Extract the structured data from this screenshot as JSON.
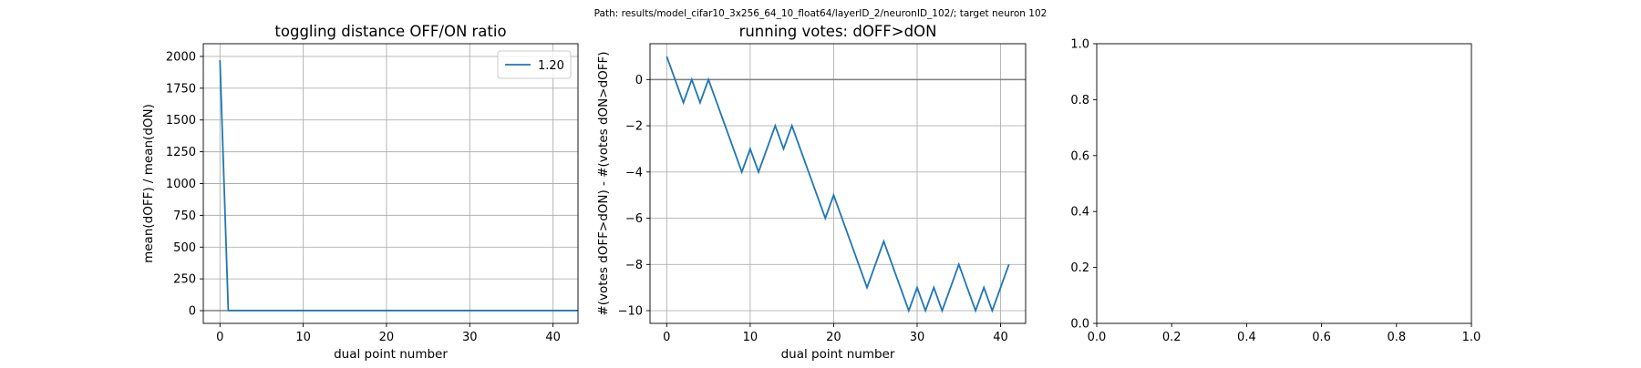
{
  "suptitle": "Path: results/model_cifar10_3x256_64_10_float64/layerID_2/neuronID_102/; target neuron 102",
  "colors": {
    "series": "#1f77b4",
    "hline": "#808080",
    "grid": "#b0b0b0"
  },
  "chart_data": [
    {
      "type": "line",
      "title": "toggling distance OFF/ON ratio",
      "xlabel": "dual point number",
      "ylabel": "mean(dOFF) / mean(dON)",
      "xlim": [
        -2,
        43
      ],
      "ylim": [
        -100,
        2100
      ],
      "xticks": [
        0,
        10,
        20,
        30,
        40
      ],
      "xtick_labels": [
        "0",
        "10",
        "20",
        "30",
        "40"
      ],
      "yticks": [
        0,
        250,
        500,
        750,
        1000,
        1250,
        1500,
        1750,
        2000
      ],
      "ytick_labels": [
        "0",
        "250",
        "500",
        "750",
        "1000",
        "1250",
        "1500",
        "1750",
        "2000"
      ],
      "grid": true,
      "hline": 0,
      "legend": {
        "position": "top-right",
        "entries": [
          "1.20"
        ]
      },
      "series": [
        {
          "name": "1.20",
          "x": [
            0,
            1,
            2,
            3,
            4,
            5,
            6,
            7,
            8,
            9,
            10,
            11,
            12,
            13,
            14,
            15,
            16,
            17,
            18,
            19,
            20,
            21,
            22,
            23,
            24,
            25,
            26,
            27,
            28,
            29,
            30,
            31,
            32,
            33,
            34,
            35,
            36,
            37,
            38,
            39,
            40,
            41,
            42,
            43
          ],
          "y": [
            1970,
            1.2,
            1.2,
            1.2,
            1.2,
            1.2,
            1.2,
            1.2,
            1.2,
            1.2,
            1.2,
            1.2,
            1.2,
            1.2,
            1.2,
            1.2,
            1.2,
            1.2,
            1.2,
            1.2,
            1.2,
            1.2,
            1.2,
            1.2,
            1.2,
            1.2,
            1.2,
            1.2,
            1.2,
            1.2,
            1.2,
            1.2,
            1.2,
            1.2,
            1.2,
            1.2,
            1.2,
            1.2,
            1.2,
            1.2,
            1.2,
            1.2,
            1.2,
            1.2
          ]
        }
      ]
    },
    {
      "type": "line",
      "title": "running votes: dOFF>dON",
      "xlabel": "dual point number",
      "ylabel": "#(votes dOFF>dON) - #(votes dON>dOFF)",
      "xlim": [
        -2,
        43
      ],
      "ylim": [
        -10.55,
        1.55
      ],
      "xticks": [
        0,
        10,
        20,
        30,
        40
      ],
      "xtick_labels": [
        "0",
        "10",
        "20",
        "30",
        "40"
      ],
      "yticks": [
        0,
        -2,
        -4,
        -6,
        -8,
        -10
      ],
      "ytick_labels": [
        "0",
        "−2",
        "−4",
        "−6",
        "−8",
        "−10"
      ],
      "grid": true,
      "hline": 0,
      "series": [
        {
          "x": [
            0,
            1,
            2,
            3,
            4,
            5,
            6,
            7,
            8,
            9,
            10,
            11,
            12,
            13,
            14,
            15,
            16,
            17,
            18,
            19,
            20,
            21,
            22,
            23,
            24,
            25,
            26,
            27,
            28,
            29,
            30,
            31,
            32,
            33,
            34,
            35,
            36,
            37,
            38,
            39,
            40,
            41
          ],
          "y": [
            1,
            0,
            -1,
            0,
            -1,
            0,
            -1,
            -2,
            -3,
            -4,
            -3,
            -4,
            -3,
            -2,
            -3,
            -2,
            -3,
            -4,
            -5,
            -6,
            -5,
            -6,
            -7,
            -8,
            -9,
            -8,
            -7,
            -8,
            -9,
            -10,
            -9,
            -10,
            -9,
            -10,
            -9,
            -8,
            -9,
            -10,
            -9,
            -10,
            -9,
            -8
          ]
        }
      ]
    },
    {
      "type": "line",
      "title": "",
      "xlabel": "",
      "ylabel": "",
      "xlim": [
        0,
        1
      ],
      "ylim": [
        0,
        1
      ],
      "xticks": [
        0,
        0.2,
        0.4,
        0.6,
        0.8,
        1.0
      ],
      "xtick_labels": [
        "0.0",
        "0.2",
        "0.4",
        "0.6",
        "0.8",
        "1.0"
      ],
      "yticks": [
        0,
        0.2,
        0.4,
        0.6,
        0.8,
        1.0
      ],
      "ytick_labels": [
        "0.0",
        "0.2",
        "0.4",
        "0.6",
        "0.8",
        "1.0"
      ],
      "grid": false,
      "series": []
    }
  ]
}
